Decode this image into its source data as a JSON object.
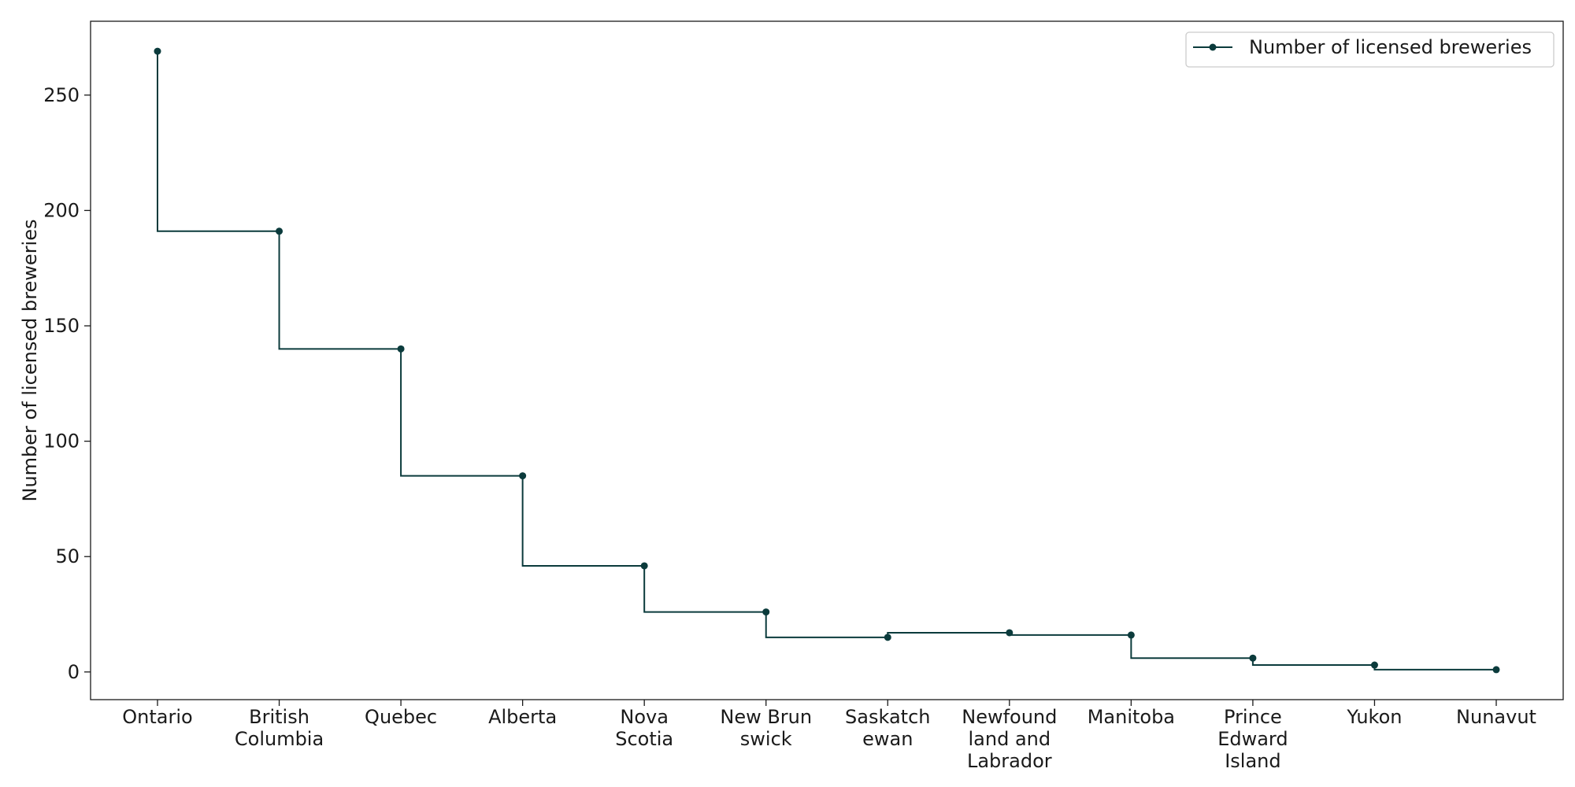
{
  "chart_data": {
    "type": "line",
    "step": "post",
    "ylabel": "Number of licensed breweries",
    "xlabel": "",
    "ylim": [
      -12,
      282
    ],
    "yticks": [
      0,
      50,
      100,
      150,
      200,
      250
    ],
    "grid": false,
    "legend_position": "top-right",
    "categories": [
      [
        "Ontario"
      ],
      [
        "British",
        "Columbia"
      ],
      [
        "Quebec"
      ],
      [
        "Alberta"
      ],
      [
        "Nova",
        "Scotia"
      ],
      [
        "New Brun",
        "swick"
      ],
      [
        "Saskatch",
        "ewan"
      ],
      [
        "Newfound",
        "land and",
        "Labrador"
      ],
      [
        "Manitoba"
      ],
      [
        "Prince",
        "Edward",
        "Island"
      ],
      [
        "Yukon"
      ],
      [
        "Nunavut"
      ]
    ],
    "series": [
      {
        "name": "Number of licensed breweries",
        "color": "#0b3b3c",
        "values": [
          269,
          191,
          140,
          85,
          46,
          26,
          15,
          17,
          16,
          6,
          3,
          1
        ]
      }
    ]
  }
}
